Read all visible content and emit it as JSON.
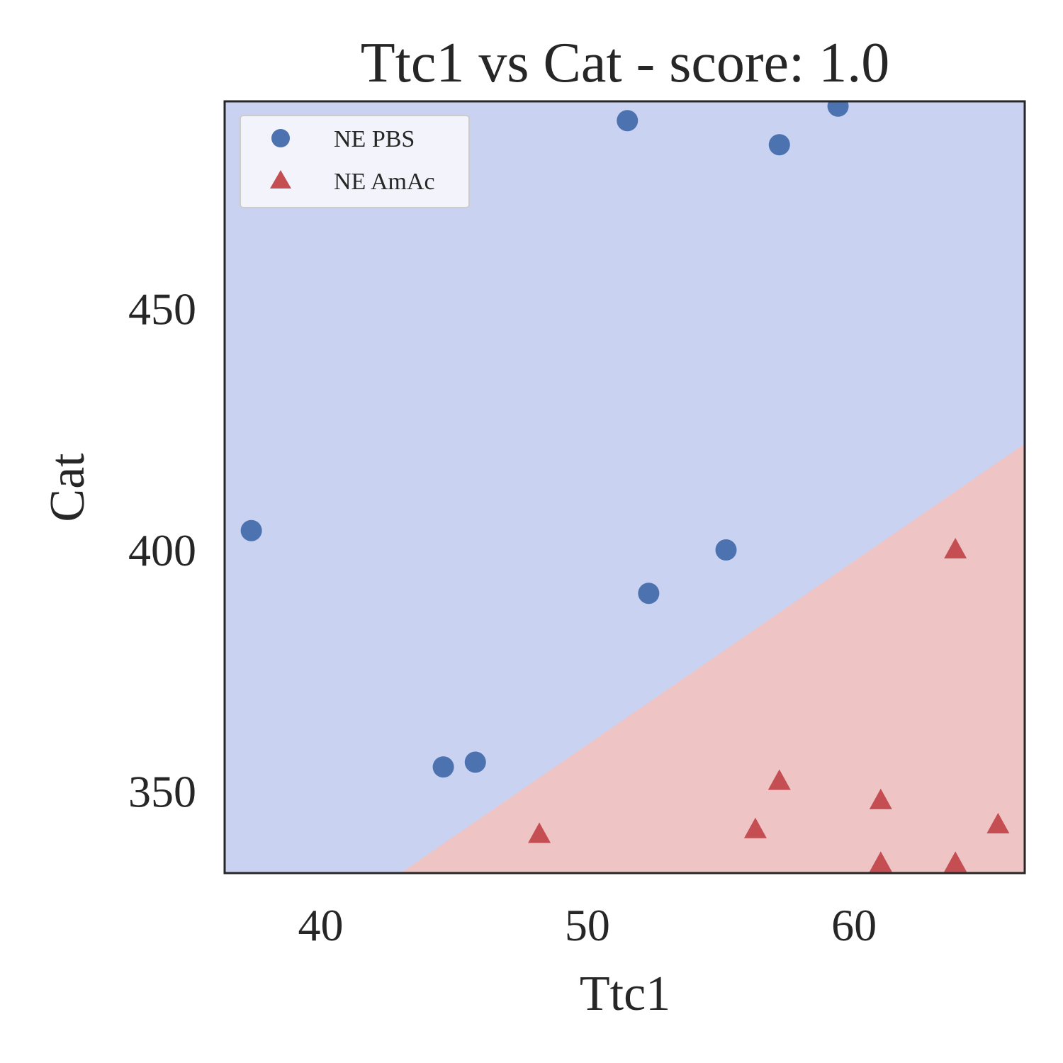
{
  "chart_data": {
    "type": "scatter",
    "title": "Ttc1 vs Cat - score: 1.0",
    "xlabel": "Ttc1",
    "ylabel": "Cat",
    "xlim": [
      36.4,
      66.4
    ],
    "ylim": [
      333,
      493
    ],
    "xticks": [
      40,
      50,
      60
    ],
    "yticks": [
      350,
      400,
      450
    ],
    "grid": false,
    "legend_position": "top-left",
    "decision_boundary": {
      "description_points": [
        [
          43.0,
          333
        ],
        [
          66.4,
          422
        ]
      ],
      "region_above_class": "NE PBS",
      "region_below_class": "NE AmAc",
      "region_above_color": "#c9d2f1",
      "region_below_color": "#efc4c4"
    },
    "series": [
      {
        "name": "NE PBS",
        "marker": "circle",
        "color": "#4c72b0",
        "points": [
          [
            37.4,
            404
          ],
          [
            44.6,
            355
          ],
          [
            45.8,
            356
          ],
          [
            51.5,
            489
          ],
          [
            52.3,
            391
          ],
          [
            55.2,
            400
          ],
          [
            57.2,
            484
          ],
          [
            59.4,
            492
          ]
        ]
      },
      {
        "name": "NE AmAc",
        "marker": "triangle",
        "color": "#c44e52",
        "points": [
          [
            48.2,
            341
          ],
          [
            56.3,
            342
          ],
          [
            57.2,
            352
          ],
          [
            61.0,
            348
          ],
          [
            61.0,
            335
          ],
          [
            63.8,
            335
          ],
          [
            63.8,
            400
          ],
          [
            65.4,
            343
          ]
        ]
      }
    ]
  }
}
